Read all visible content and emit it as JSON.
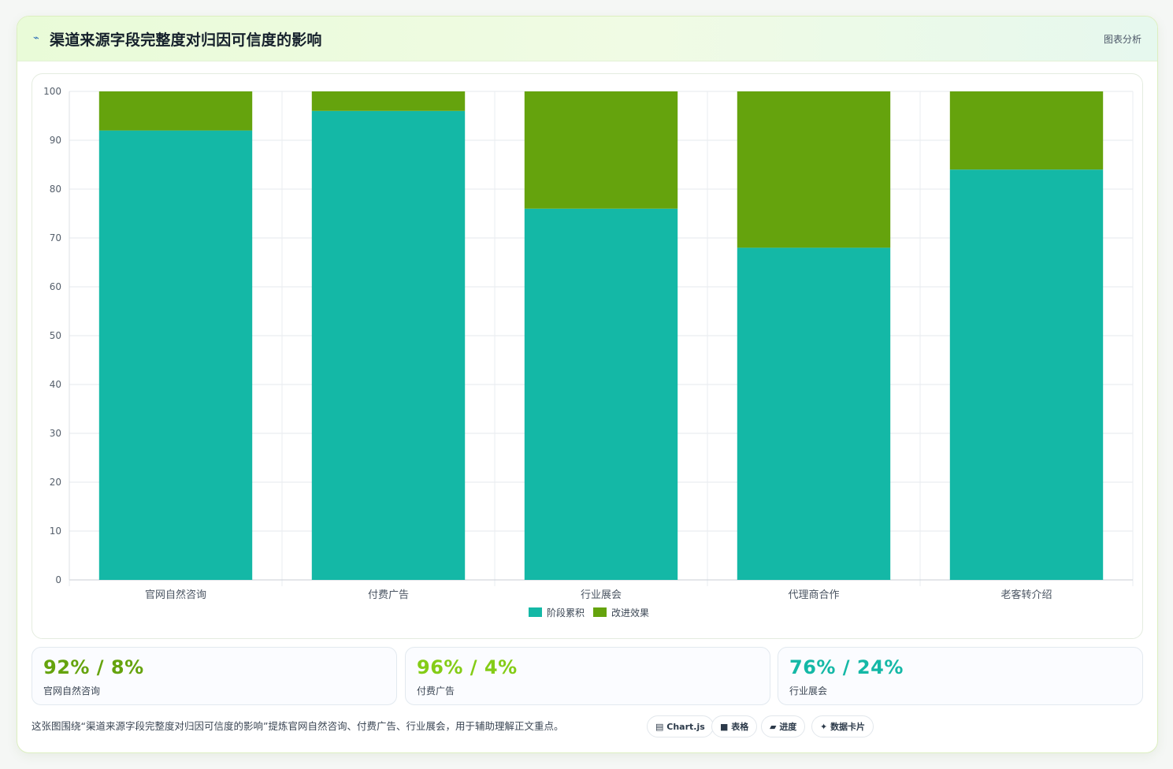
{
  "header": {
    "icon": "trend-line-icon",
    "title": "渠道来源字段完整度对归因可信度的影响",
    "tag": "图表分析"
  },
  "chart_data": {
    "type": "bar",
    "stacked": true,
    "categories": [
      "官网自然咨询",
      "付费广告",
      "行业展会",
      "代理商合作",
      "老客转介绍"
    ],
    "series": [
      {
        "name": "阶段累积",
        "color": "#14b8a6",
        "values": [
          92,
          96,
          76,
          68,
          84
        ]
      },
      {
        "name": "改进效果",
        "color": "#65a30d",
        "values": [
          8,
          4,
          24,
          32,
          16
        ]
      }
    ],
    "ylim": [
      0,
      100
    ],
    "yticks": [
      0,
      10,
      20,
      30,
      40,
      50,
      60,
      70,
      80,
      90,
      100
    ],
    "grid": true,
    "legend": "bottom"
  },
  "stats": [
    {
      "value": "92% / 8%",
      "label": "官网自然咨询",
      "color": "#65a30d"
    },
    {
      "value": "96% / 4%",
      "label": "付费广告",
      "color": "#84cc16"
    },
    {
      "value": "76% / 24%",
      "label": "行业展会",
      "color": "#14b8a6"
    }
  ],
  "footer": {
    "caption": "这张图围绕“渠道来源字段完整度对归因可信度的影响”提炼官网自然咨询、付费广告、行业展会，用于辅助理解正文重点。",
    "chips": [
      {
        "icon": "chart-icon",
        "glyph": "▤",
        "label": "Chart.js"
      },
      {
        "icon": "table-icon",
        "glyph": "■",
        "label": "表格"
      },
      {
        "icon": "progress-icon",
        "glyph": "▰",
        "label": "进度"
      },
      {
        "icon": "sparkle-icon",
        "glyph": "✦",
        "label": "数据卡片"
      }
    ]
  }
}
